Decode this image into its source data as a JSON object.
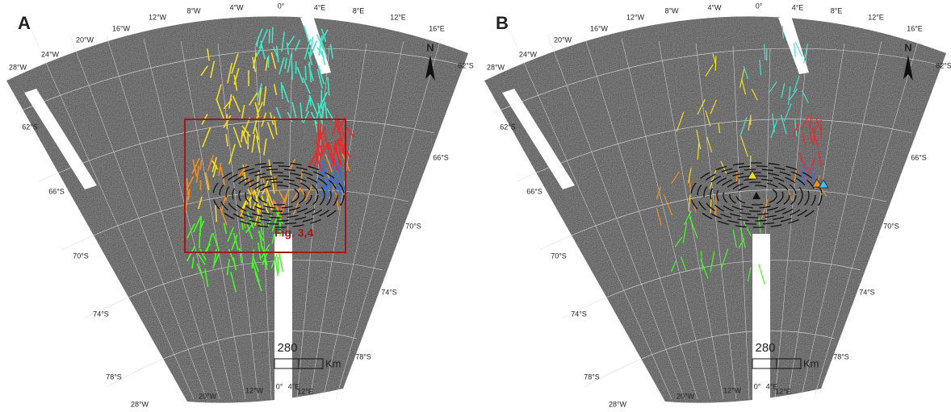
{
  "panels": [
    {
      "label": "A",
      "lon_top": [
        "28°W",
        "24°W",
        "20°W",
        "16°W",
        "12°W",
        "8°W",
        "4°W",
        "0°",
        "4°E",
        "8°E",
        "12°E",
        "16°E"
      ],
      "lat_right": [
        "62°S",
        "66°S",
        "70°S",
        "74°S",
        "78°S"
      ],
      "lat_left": [
        "62°S",
        "66°S",
        "70°S",
        "74°S",
        "78°S"
      ],
      "lon_bottom": [
        "28°W",
        "20°W",
        "12°W",
        "0°",
        "4°E",
        "12°E"
      ],
      "scale_value": "280",
      "scale_unit": "Km",
      "north": "N",
      "box_label": "Fig. 3,4"
    },
    {
      "label": "B",
      "lon_top": [
        "28°W",
        "24°W",
        "20°W",
        "16°W",
        "12°W",
        "8°W",
        "4°W",
        "0°",
        "4°E",
        "8°E",
        "12°E",
        "16°E"
      ],
      "lat_right": [
        "62°S",
        "66°S",
        "70°S",
        "74°S",
        "78°S"
      ],
      "lat_left": [
        "62°S",
        "66°S",
        "70°S",
        "74°S",
        "78°S"
      ],
      "lon_bottom": [
        "28°W",
        "20°W",
        "12°W",
        "0°",
        "4°E",
        "12°E"
      ],
      "scale_value": "280",
      "scale_unit": "Km",
      "north": "N"
    }
  ]
}
